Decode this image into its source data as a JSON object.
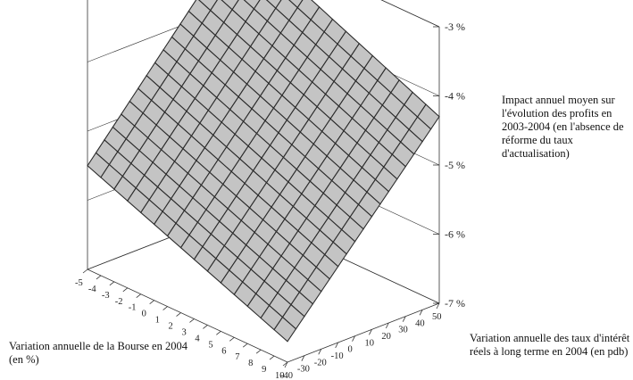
{
  "chart_data": {
    "type": "surface",
    "title": "",
    "x_axis": {
      "label": "Variation annuelle de la Bourse en 2004 (en %)",
      "ticks": [
        "-5",
        "-4",
        "-3",
        "-2",
        "-1",
        "0",
        "1",
        "2",
        "3",
        "4",
        "5",
        "6",
        "7",
        "8",
        "9",
        "10"
      ],
      "range": [
        -5,
        10
      ]
    },
    "y_axis": {
      "label": "Variation annuelle  des taux d'intérêt réels à long terme en 2004 (en pdb)",
      "ticks": [
        "-40",
        "-30",
        "-20",
        "-10",
        "0",
        "10",
        "20",
        "30",
        "40",
        "50"
      ],
      "range": [
        -40,
        50
      ]
    },
    "z_axis": {
      "label": "Impact annuel moyen sur l'évolution des profits en 2003-2004 (en l'absence de réforme du taux d'actualisation)",
      "ticks": [
        "-3 %",
        "-4 %",
        "-5 %",
        "-6 %",
        "-7 %"
      ],
      "range": [
        -7,
        -3
      ],
      "unit": "%"
    },
    "surface": {
      "description_points": [
        {
          "bourse": -5,
          "taux": -40,
          "impact": -5.5
        },
        {
          "bourse": 10,
          "taux": -40,
          "impact": -6.7
        },
        {
          "bourse": -5,
          "taux": 50,
          "impact": -3.0
        },
        {
          "bourse": 10,
          "taux": 50,
          "impact": -4.3
        }
      ]
    },
    "colors": {
      "surface": "#c4c4c4",
      "grid": "#2b2b2b",
      "axes": "#333333"
    }
  }
}
